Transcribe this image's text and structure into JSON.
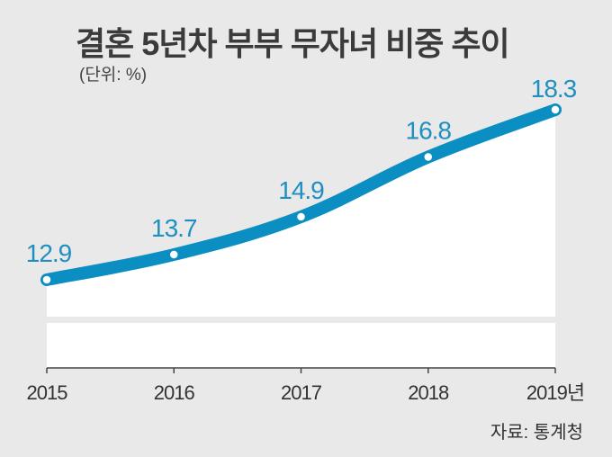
{
  "chart_data": {
    "type": "line",
    "title": "결혼 5년차 부부 무자녀 비중 추이",
    "subtitle": "(단위: %)",
    "source": "자료: 통계청",
    "categories": [
      "2015",
      "2016",
      "2017",
      "2018",
      "2019년"
    ],
    "series": [
      {
        "name": "무자녀 비중",
        "values": [
          12.9,
          13.7,
          14.9,
          16.8,
          18.3
        ]
      }
    ],
    "data_labels": [
      "12.9",
      "13.7",
      "14.9",
      "16.8",
      "18.3"
    ],
    "xlabel": "",
    "ylabel": "",
    "ylim": [
      12.9,
      18.3
    ],
    "grid": false,
    "legend": "none",
    "colors": {
      "line": "#0b8ec1",
      "area": "#ffffff",
      "label": "#1e8fc0",
      "background": "#e9e9e9"
    }
  }
}
